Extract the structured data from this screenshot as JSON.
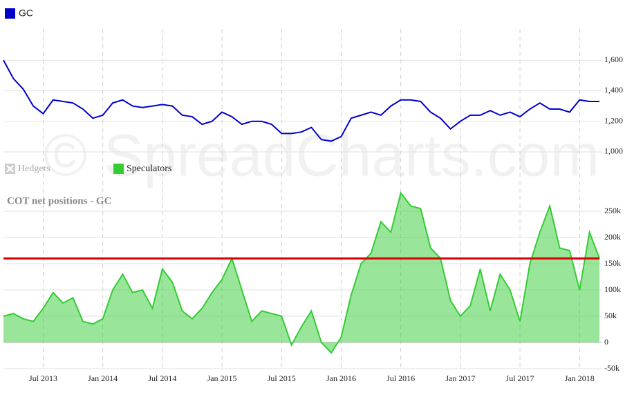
{
  "watermark": "© SpreadCharts.com",
  "chart_data": [
    {
      "type": "line",
      "x": [
        "2013-03",
        "2013-04",
        "2013-05",
        "2013-06",
        "2013-07",
        "2013-08",
        "2013-09",
        "2013-10",
        "2013-11",
        "2013-12",
        "2014-01",
        "2014-02",
        "2014-03",
        "2014-04",
        "2014-05",
        "2014-06",
        "2014-07",
        "2014-08",
        "2014-09",
        "2014-10",
        "2014-11",
        "2014-12",
        "2015-01",
        "2015-02",
        "2015-03",
        "2015-04",
        "2015-05",
        "2015-06",
        "2015-07",
        "2015-08",
        "2015-09",
        "2015-10",
        "2015-11",
        "2015-12",
        "2016-01",
        "2016-02",
        "2016-03",
        "2016-04",
        "2016-05",
        "2016-06",
        "2016-07",
        "2016-08",
        "2016-09",
        "2016-10",
        "2016-11",
        "2016-12",
        "2017-01",
        "2017-02",
        "2017-03",
        "2017-04",
        "2017-05",
        "2017-06",
        "2017-07",
        "2017-08",
        "2017-09",
        "2017-10",
        "2017-11",
        "2017-12",
        "2018-01",
        "2018-02",
        "2018-03"
      ],
      "series": [
        {
          "name": "GC",
          "color": "#0000cc",
          "values": [
            1600,
            1480,
            1410,
            1300,
            1250,
            1340,
            1330,
            1320,
            1280,
            1220,
            1240,
            1320,
            1340,
            1300,
            1290,
            1300,
            1310,
            1300,
            1240,
            1230,
            1180,
            1200,
            1260,
            1230,
            1180,
            1200,
            1200,
            1180,
            1120,
            1120,
            1130,
            1160,
            1080,
            1070,
            1100,
            1220,
            1240,
            1260,
            1240,
            1300,
            1340,
            1340,
            1330,
            1260,
            1220,
            1150,
            1200,
            1240,
            1240,
            1270,
            1240,
            1260,
            1230,
            1280,
            1320,
            1280,
            1280,
            1260,
            1340,
            1330,
            1330
          ]
        }
      ],
      "ylim": [
        950,
        1800
      ],
      "yticks": [
        {
          "value": 1000,
          "label": "1,000"
        },
        {
          "value": 1200,
          "label": "1,200"
        },
        {
          "value": 1400,
          "label": "1,400"
        },
        {
          "value": 1600,
          "label": "1,600"
        }
      ],
      "xticks": [
        {
          "value": "2013-07",
          "label": "Jul 2013"
        },
        {
          "value": "2014-01",
          "label": "Jan 2014"
        },
        {
          "value": "2014-07",
          "label": "Jul 2014"
        },
        {
          "value": "2015-01",
          "label": "Jan 2015"
        },
        {
          "value": "2015-07",
          "label": "Jul 2015"
        },
        {
          "value": "2016-01",
          "label": "Jan 2016"
        },
        {
          "value": "2016-07",
          "label": "Jul 2016"
        },
        {
          "value": "2017-01",
          "label": "Jan 2017"
        },
        {
          "value": "2017-07",
          "label": "Jul 2017"
        },
        {
          "value": "2018-01",
          "label": "Jan 2018"
        }
      ],
      "grid": true
    },
    {
      "type": "area",
      "title": "COT net positions - GC",
      "x": [
        "2013-03",
        "2013-04",
        "2013-05",
        "2013-06",
        "2013-07",
        "2013-08",
        "2013-09",
        "2013-10",
        "2013-11",
        "2013-12",
        "2014-01",
        "2014-02",
        "2014-03",
        "2014-04",
        "2014-05",
        "2014-06",
        "2014-07",
        "2014-08",
        "2014-09",
        "2014-10",
        "2014-11",
        "2014-12",
        "2015-01",
        "2015-02",
        "2015-03",
        "2015-04",
        "2015-05",
        "2015-06",
        "2015-07",
        "2015-08",
        "2015-09",
        "2015-10",
        "2015-11",
        "2015-12",
        "2016-01",
        "2016-02",
        "2016-03",
        "2016-04",
        "2016-05",
        "2016-06",
        "2016-07",
        "2016-08",
        "2016-09",
        "2016-10",
        "2016-11",
        "2016-12",
        "2017-01",
        "2017-02",
        "2017-03",
        "2017-04",
        "2017-05",
        "2017-06",
        "2017-07",
        "2017-08",
        "2017-09",
        "2017-10",
        "2017-11",
        "2017-12",
        "2018-01",
        "2018-02",
        "2018-03"
      ],
      "series": [
        {
          "name": "Hedgers",
          "color": "#cccccc",
          "visible": false
        },
        {
          "name": "Speculators",
          "color": "#33cc33",
          "visible": true,
          "values": [
            50000,
            55000,
            45000,
            40000,
            65000,
            95000,
            75000,
            85000,
            40000,
            35000,
            45000,
            100000,
            130000,
            95000,
            100000,
            65000,
            140000,
            115000,
            60000,
            45000,
            65000,
            95000,
            120000,
            160000,
            100000,
            40000,
            60000,
            55000,
            50000,
            -5000,
            30000,
            60000,
            0,
            -20000,
            10000,
            90000,
            150000,
            170000,
            230000,
            210000,
            285000,
            260000,
            255000,
            180000,
            160000,
            80000,
            50000,
            70000,
            140000,
            60000,
            130000,
            100000,
            40000,
            150000,
            210000,
            260000,
            180000,
            175000,
            100000,
            210000,
            160000
          ]
        }
      ],
      "reference_line": {
        "value": 160000,
        "color": "#dd0000"
      },
      "ylim": [
        -50000,
        300000
      ],
      "yticks": [
        {
          "value": -50000,
          "label": "-50k"
        },
        0,
        {
          "value": 50000,
          "label": "50k"
        },
        {
          "value": 100000,
          "label": "100k"
        },
        {
          "value": 150000,
          "label": "150k"
        },
        {
          "value": 200000,
          "label": "200k"
        },
        {
          "value": 250000,
          "label": "250k"
        }
      ],
      "xticks": [
        {
          "value": "2013-07",
          "label": "Jul 2013"
        },
        {
          "value": "2014-01",
          "label": "Jan 2014"
        },
        {
          "value": "2014-07",
          "label": "Jul 2014"
        },
        {
          "value": "2015-01",
          "label": "Jan 2015"
        },
        {
          "value": "2015-07",
          "label": "Jul 2015"
        },
        {
          "value": "2016-01",
          "label": "Jan 2016"
        },
        {
          "value": "2016-07",
          "label": "Jul 2016"
        },
        {
          "value": "2017-01",
          "label": "Jan 2017"
        },
        {
          "value": "2017-07",
          "label": "Jul 2017"
        },
        {
          "value": "2018-01",
          "label": "Jan 2018"
        }
      ],
      "grid": true
    }
  ]
}
